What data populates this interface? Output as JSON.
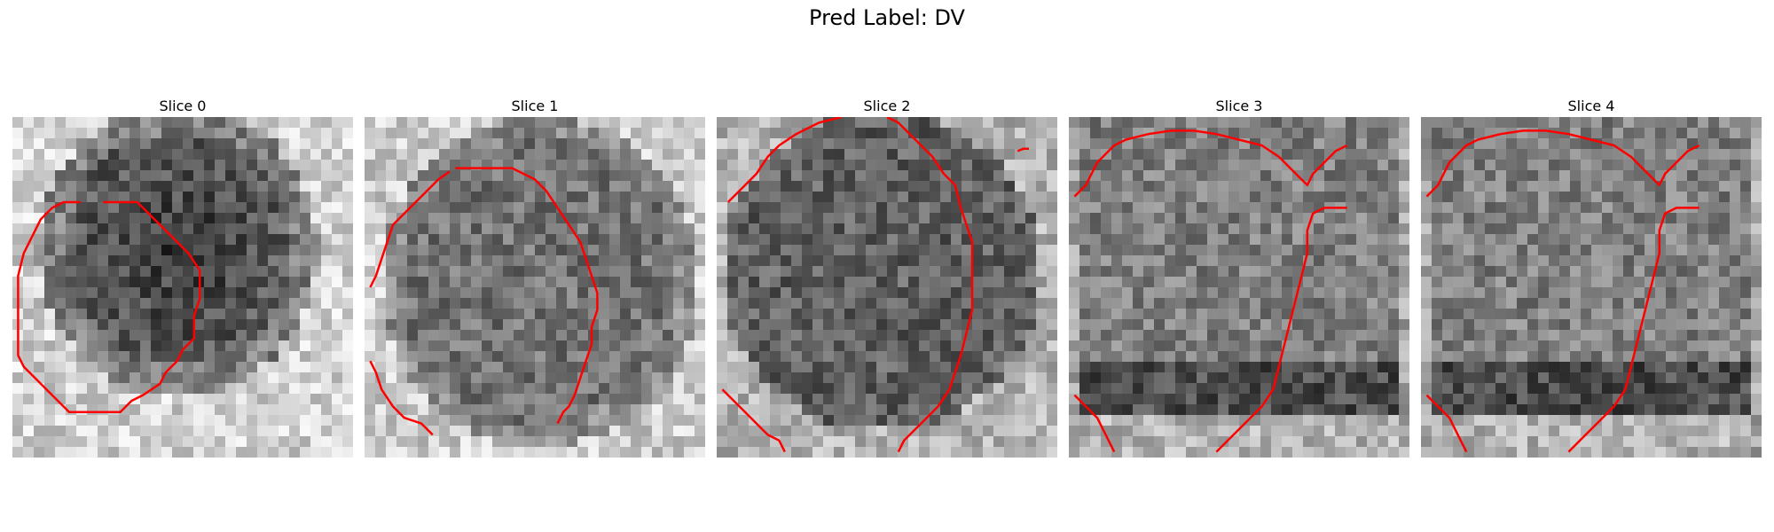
{
  "figure": {
    "title": "Pred Label: DV",
    "panels": [
      {
        "label": "Slice 0"
      },
      {
        "label": "Slice 1"
      },
      {
        "label": "Slice 2"
      },
      {
        "label": "Slice 3"
      },
      {
        "label": "Slice 4"
      }
    ]
  },
  "colors": {
    "contour": "#ff0000",
    "background": "#ffffff"
  }
}
